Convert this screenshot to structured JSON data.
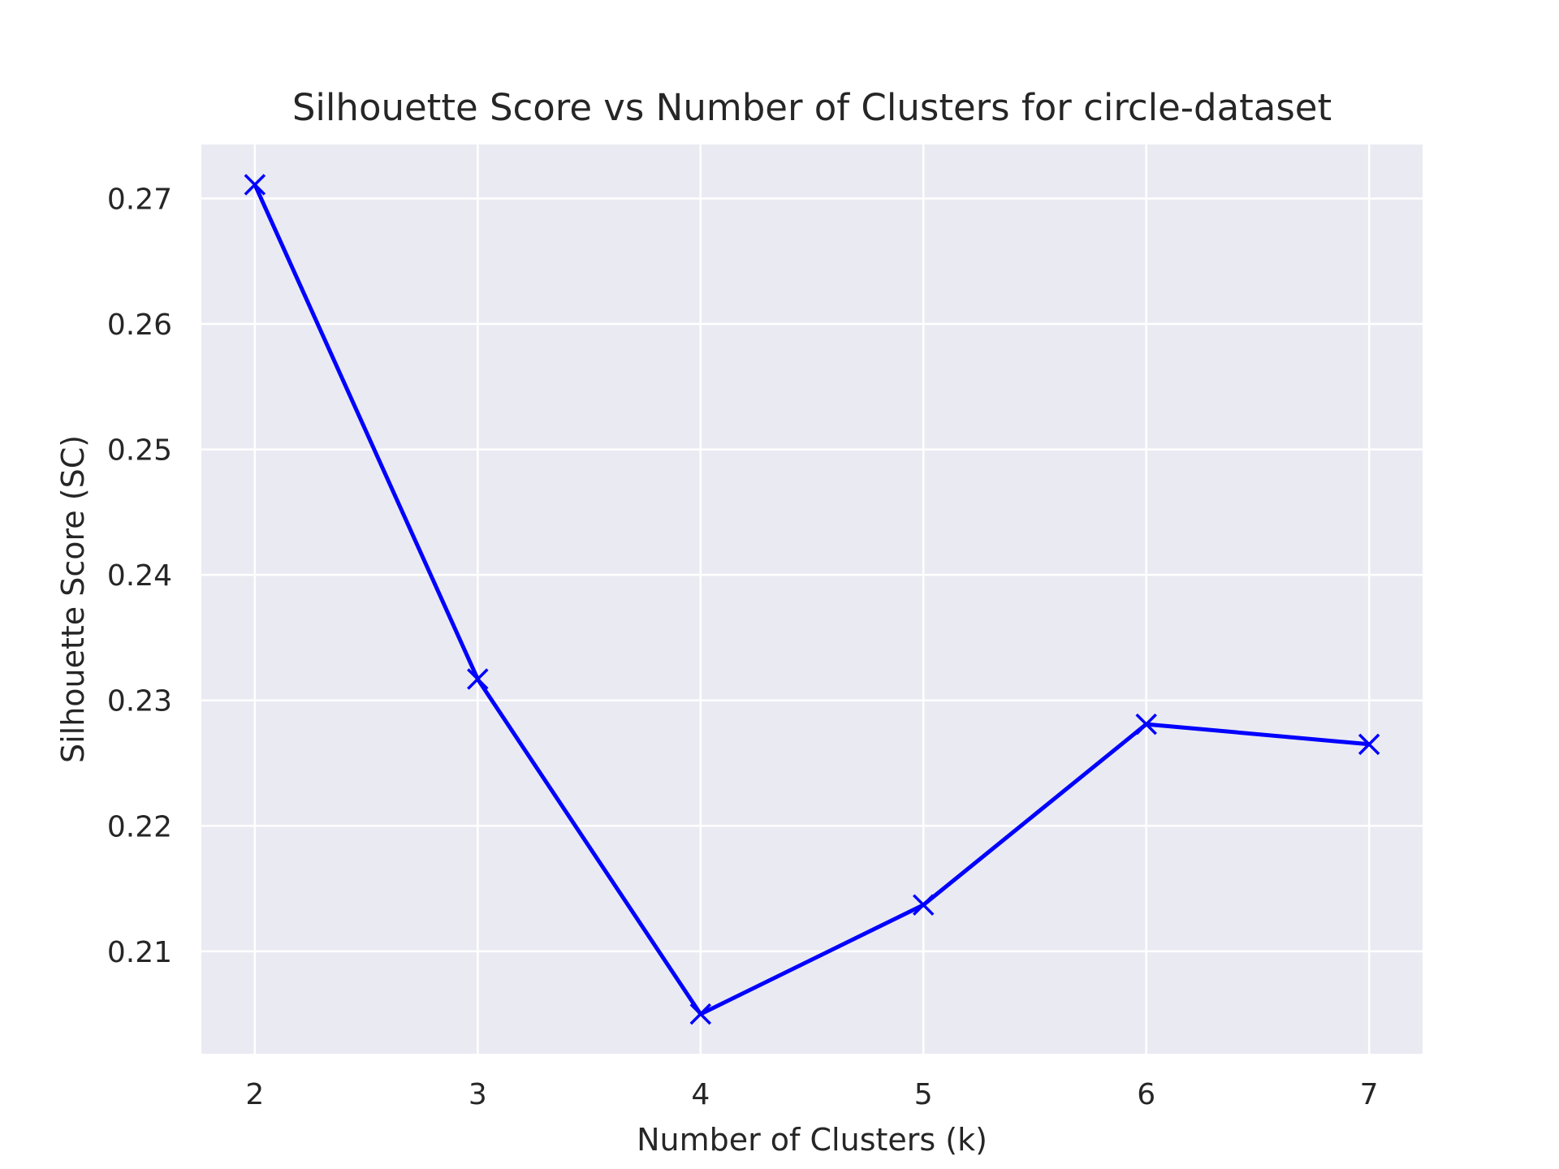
{
  "chart_data": {
    "type": "line",
    "title": "Silhouette Score vs Number of Clusters for circle-dataset",
    "xlabel": "Number of Clusters (k)",
    "ylabel": "Silhouette Score (SC)",
    "x": [
      2,
      3,
      4,
      5,
      6,
      7
    ],
    "series": [
      {
        "values": [
          0.2711,
          0.2317,
          0.205,
          0.2137,
          0.2281,
          0.2265
        ],
        "color": "#0000ff",
        "marker": "x"
      }
    ],
    "xticks": [
      2,
      3,
      4,
      5,
      6,
      7
    ],
    "yticks": [
      0.21,
      0.22,
      0.23,
      0.24,
      0.25,
      0.26,
      0.27
    ],
    "ytick_labels": [
      "0.21",
      "0.22",
      "0.23",
      "0.24",
      "0.25",
      "0.26",
      "0.27"
    ],
    "xlim": [
      1.76,
      7.24
    ],
    "ylim": [
      0.20184,
      0.2743
    ],
    "grid": true,
    "background": "#eaeaf2"
  }
}
